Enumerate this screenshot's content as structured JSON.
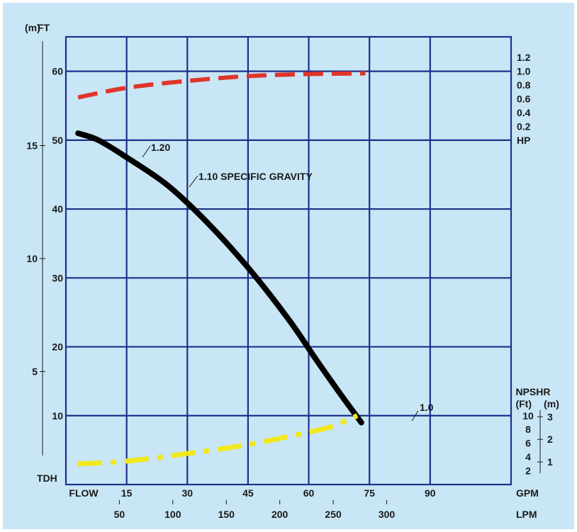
{
  "chart_data": {
    "type": "line",
    "title": "",
    "x_axis": {
      "label_start": "FLOW",
      "unit": "GPM",
      "range": [
        0,
        110
      ],
      "ticks": [
        15,
        30,
        45,
        60,
        75,
        90
      ],
      "secondary": {
        "unit": "LPM",
        "ticks": [
          50,
          100,
          150,
          200,
          250,
          300
        ]
      }
    },
    "y_axis": {
      "unit": "FT",
      "bottom_label": "TDH",
      "range": [
        0,
        65
      ],
      "ticks": [
        10,
        20,
        30,
        40,
        50,
        60
      ],
      "metric": {
        "unit": "(m)",
        "ticks": [
          5,
          10,
          15
        ]
      }
    },
    "hp_axis": {
      "unit": "HP",
      "ticks": [
        "1.2",
        "1.0",
        "0.8",
        "0.6",
        "0.4",
        "0.2"
      ]
    },
    "npshr_axis": {
      "title": "NPSHR",
      "ft_unit": "(Ft)",
      "m_unit": "(m)",
      "ft_ticks": [
        "10",
        "8",
        "6",
        "4",
        "2"
      ],
      "m_ticks": [
        "3",
        "2",
        "1"
      ]
    },
    "grid": true,
    "series": [
      {
        "role": "head",
        "color": "#000000",
        "style": "solid",
        "points": [
          [
            3,
            51
          ],
          [
            8,
            50
          ],
          [
            15,
            47.5
          ],
          [
            25,
            43.5
          ],
          [
            35,
            38
          ],
          [
            45,
            31.5
          ],
          [
            55,
            24
          ],
          [
            62,
            18
          ],
          [
            68,
            13
          ],
          [
            73,
            9
          ]
        ]
      },
      {
        "role": "horsepower",
        "color": "#e0352b",
        "style": "dashed",
        "points": [
          [
            3,
            56.2
          ],
          [
            15,
            57.6
          ],
          [
            30,
            58.6
          ],
          [
            45,
            59.3
          ],
          [
            60,
            59.6
          ],
          [
            74,
            59.7
          ]
        ]
      },
      {
        "role": "npshr",
        "color": "#f2e81c",
        "style": "dash-dot",
        "points": [
          [
            3,
            3
          ],
          [
            15,
            3.4
          ],
          [
            30,
            4.5
          ],
          [
            45,
            5.8
          ],
          [
            60,
            7.6
          ],
          [
            66,
            8.5
          ],
          [
            72,
            10
          ]
        ]
      }
    ],
    "annotations": [
      {
        "text": "1.20"
      },
      {
        "text": "1.10  SPECIFIC GRAVITY"
      },
      {
        "text": "1.0"
      }
    ]
  }
}
